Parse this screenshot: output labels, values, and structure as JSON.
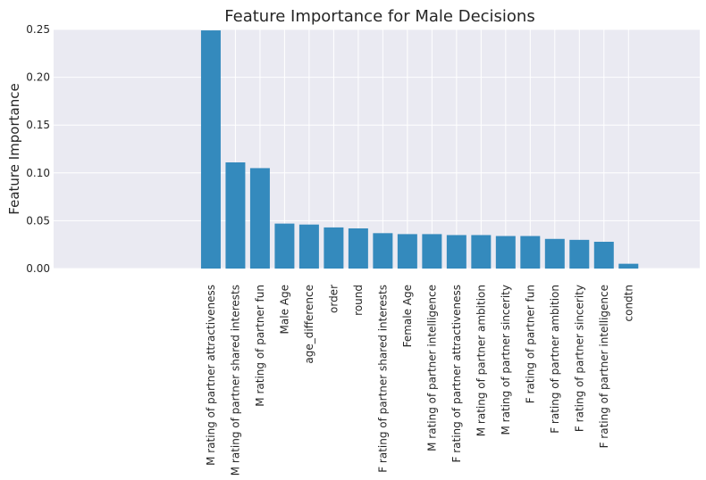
{
  "chart_data": {
    "type": "bar",
    "title": "Feature Importance for Male Decisions",
    "xlabel": "",
    "ylabel": "Feature Importance",
    "ylim": [
      0,
      0.25
    ],
    "yticks": [
      "0.00",
      "0.05",
      "0.10",
      "0.15",
      "0.20",
      "0.25"
    ],
    "grid": true,
    "bar_color": "#348ABD",
    "background_color": "#EAEAF2",
    "categories": [
      "M rating of partner attractiveness",
      "M rating of partner shared interests",
      "M rating of partner fun",
      "Male Age",
      "age_difference",
      "order",
      "round",
      "F rating of partner shared interests",
      "Female Age",
      "M rating of partner intelligence",
      "F rating of partner attractiveness",
      "M rating of partner ambition",
      "M rating of partner sincerity",
      "F rating of partner fun",
      "F rating of partner ambition",
      "F rating of partner sincerity",
      "F rating of partner intelligence",
      "condtn"
    ],
    "values": [
      0.249,
      0.111,
      0.105,
      0.047,
      0.046,
      0.043,
      0.042,
      0.037,
      0.036,
      0.036,
      0.035,
      0.035,
      0.034,
      0.034,
      0.031,
      0.03,
      0.028,
      0.005
    ]
  }
}
